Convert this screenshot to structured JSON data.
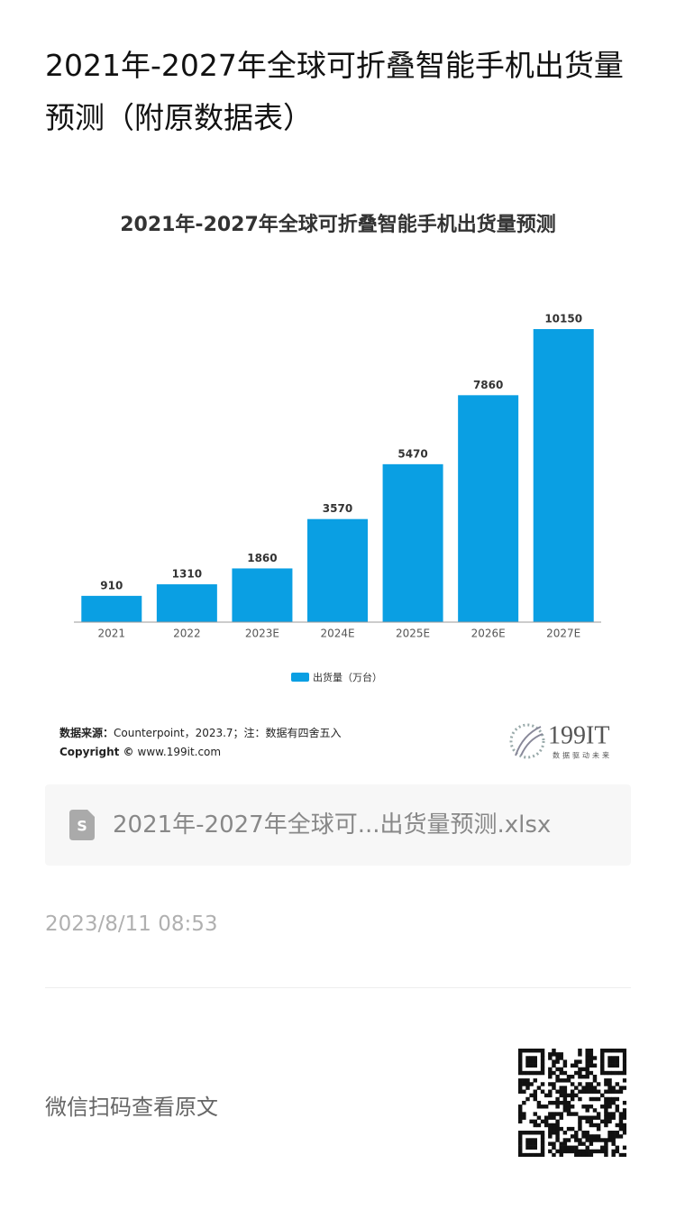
{
  "header": {
    "title": "2021年-2027年全球可折叠智能手机出货量预测（附原数据表）"
  },
  "chart_data": {
    "type": "bar",
    "title": "2021年-2027年全球可折叠智能手机出货量预测",
    "categories": [
      "2021",
      "2022",
      "2023E",
      "2024E",
      "2025E",
      "2026E",
      "2027E"
    ],
    "series": [
      {
        "name": "出货量（万台）",
        "color": "#0a9fe3",
        "values": [
          910,
          1310,
          1860,
          3570,
          5470,
          7860,
          10150
        ]
      }
    ],
    "legend": "bottom"
  },
  "source": {
    "label": "数据来源：",
    "text": "Counterpoint，2023.7；注：数据有四舍五入",
    "copyright_label": "Copyright ©",
    "copyright_text": "www.199it.com"
  },
  "logo": {
    "name": "199IT",
    "slogan": "数据驱动未来"
  },
  "attachment": {
    "filename": "2021年-2027年全球可...出货量预测.xlsx"
  },
  "date": "2023/8/11 08:53",
  "footer": {
    "text": "微信扫码查看原文"
  }
}
